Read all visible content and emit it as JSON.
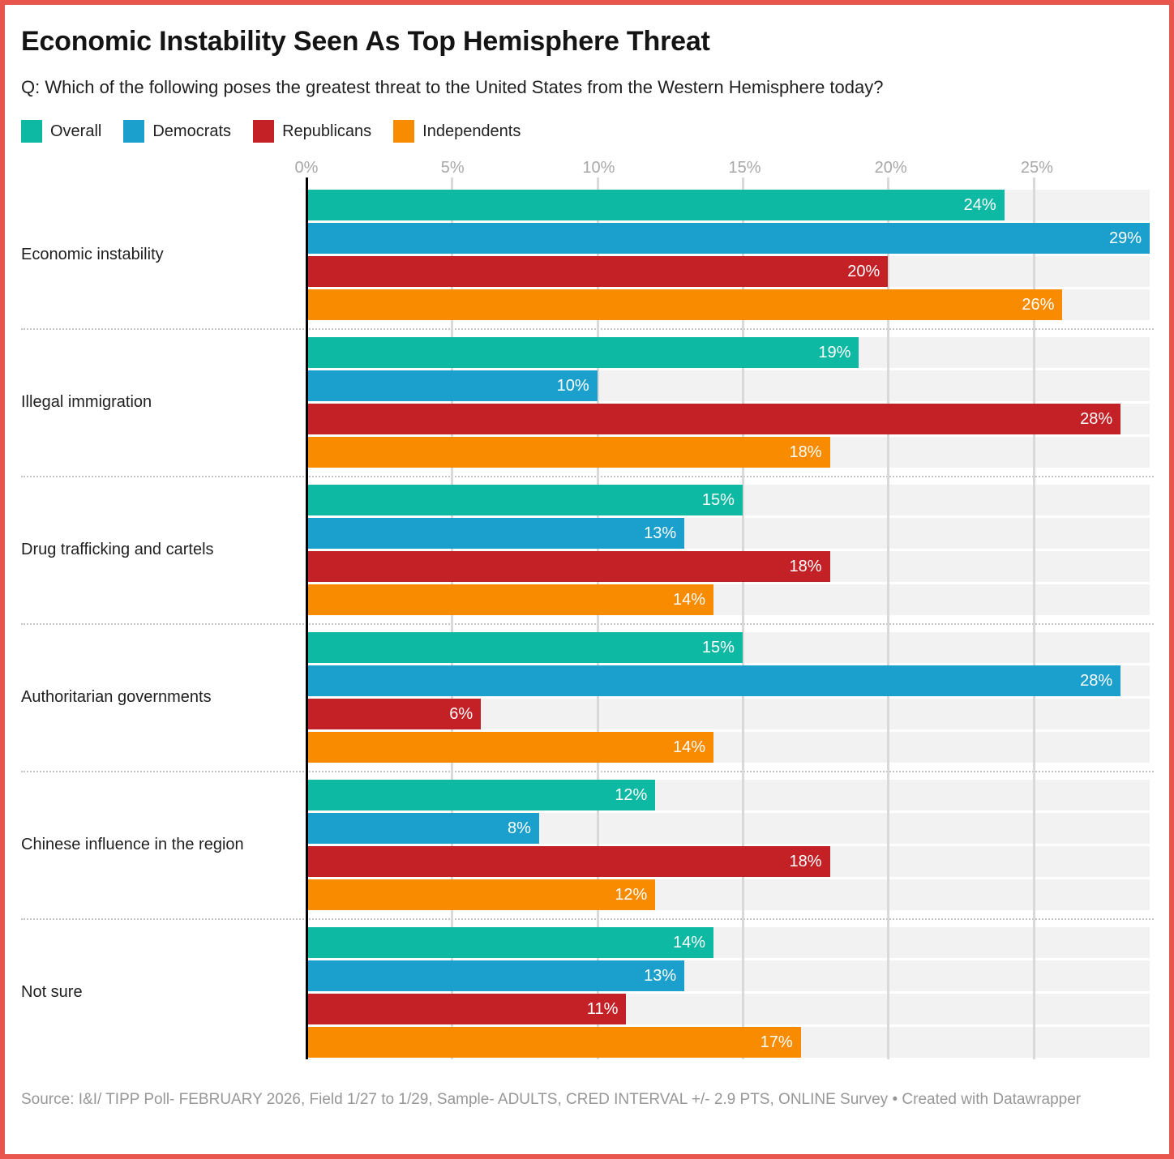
{
  "header": {
    "title": "Economic Instability Seen As Top Hemisphere Threat",
    "subtitle": "Q: Which of the following poses the greatest threat to the United States from the Western Hemisphere today?"
  },
  "footer": {
    "source": "Source: I&I/ TIPP Poll- FEBRUARY 2026, Field 1/27 to 1/29, Sample- ADULTS, CRED INTERVAL +/- 2.9 PTS, ONLINE Survey",
    "separator": "•",
    "attribution": "Created with Datawrapper"
  },
  "theme": {
    "frame_border": "#e8564d",
    "track_bg": "#f2f2f2",
    "gridline": "#d9d9d9",
    "axis_line": "#000000",
    "tick_label": "#a8a8a8",
    "value_label": "#ffffff"
  },
  "chart_data": {
    "type": "bar",
    "orientation": "horizontal",
    "title": "Economic Instability Seen As Top Hemisphere Threat",
    "subtitle": "Q: Which of the following poses the greatest threat to the United States from the Western Hemisphere today?",
    "value_suffix": "%",
    "xlim": [
      0,
      29
    ],
    "x_ticks": [
      0,
      5,
      10,
      15,
      20,
      25
    ],
    "x_tick_labels": [
      "0%",
      "5%",
      "10%",
      "15%",
      "20%",
      "25%"
    ],
    "grid": true,
    "legend_position": "top",
    "categories": [
      "Economic instability",
      "Illegal immigration",
      "Drug trafficking and cartels",
      "Authoritarian governments",
      "Chinese influence in the region",
      "Not sure"
    ],
    "series": [
      {
        "name": "Overall",
        "color": "#0db9a2",
        "values": [
          24,
          19,
          15,
          15,
          12,
          14
        ]
      },
      {
        "name": "Democrats",
        "color": "#1b9fcd",
        "values": [
          29,
          10,
          13,
          28,
          8,
          13
        ]
      },
      {
        "name": "Republicans",
        "color": "#c42127",
        "values": [
          20,
          28,
          18,
          6,
          18,
          11
        ]
      },
      {
        "name": "Independents",
        "color": "#f98b00",
        "values": [
          26,
          18,
          14,
          14,
          12,
          17
        ]
      }
    ]
  }
}
